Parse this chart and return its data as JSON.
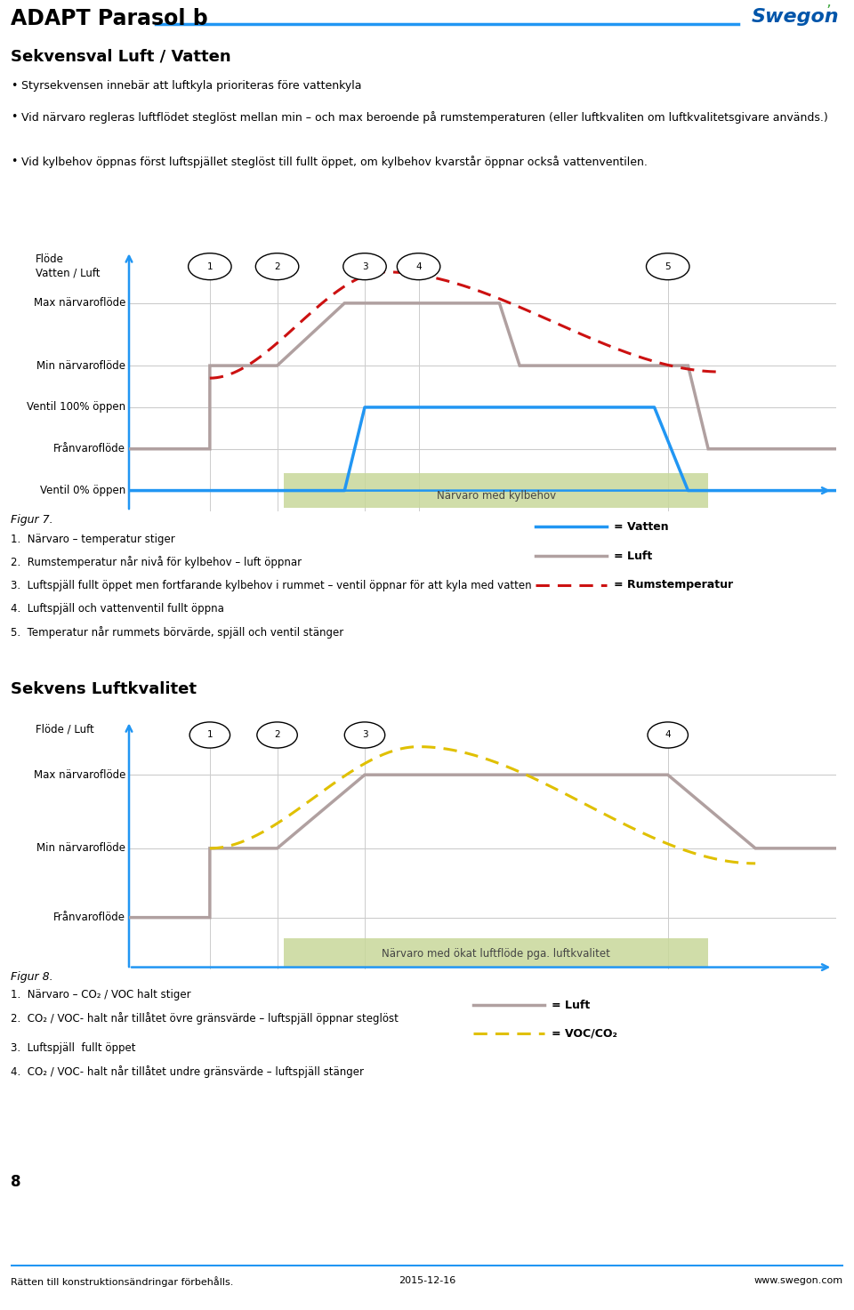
{
  "title": "ADAPT Parasol b",
  "section1_title": "Sekvensval Luft / Vatten",
  "section1_bullets": [
    "Styrsekvensen innebär att luftkyla prioriteras före vattenkyla",
    "Vid närvaro regleras luftflödet steglöst mellan min – och max beroende på rumstemperaturen (eller luftkvaliten om luftkvalitetsgivare används.)",
    "Vid kylbehov öppnas först luftspjället steglöst till fullt öppet, om kylbehov kvarstår öppnar också vattenventilen."
  ],
  "chart1_ylabels": [
    "Max närvaroflöde",
    "Min närvaroflöde",
    "Ventil 100% öppen",
    "Frånvaroflöde",
    "Ventil 0% öppen"
  ],
  "chart1_green_label": "Närvaro med kylbehov",
  "chart1_numbers": [
    "1",
    "2",
    "3",
    "4",
    "5"
  ],
  "fig7_title": "Figur 7.",
  "fig7_items": [
    "1.  Närvaro – temperatur stiger",
    "2.  Rumstemperatur når nivå för kylbehov – luft öppnar",
    "3.  Luftspjäll fullt öppet men fortfarande kylbehov i rummet – ventil öppnar för att kyla med vatten",
    "4.  Luftspjäll och vattenventil fullt öppna",
    "5.  Temperatur når rummets börvärde, spjäll och ventil stänger"
  ],
  "legend1_vatten": "= Vatten",
  "legend1_luft": "= Luft",
  "legend1_rumstemp": "= Rumstemperatur",
  "section2_title": "Sekvens Luftkvalitet",
  "chart2_ylabels": [
    "Max närvaroflöde",
    "Min närvaroflöde",
    "Frånvaroflöde"
  ],
  "chart2_green_label": "Närvaro med ökat luftflöde pga. luftkvalitet",
  "chart2_numbers": [
    "1",
    "2",
    "3",
    "4"
  ],
  "fig8_title": "Figur 8.",
  "fig8_items": [
    "1.  Närvaro – CO₂ / VOC halt stiger",
    "2.  CO₂ / VOC- halt når tillåtet övre gränsvärde – luftspjäll öppnar steglöst",
    "3.  Luftspjäll  fullt öppet",
    "4.  CO₂ / VOC- halt når tillåtet undre gränsvärde – luftspjäll stänger"
  ],
  "legend2_luft": "= Luft",
  "legend2_voc": "= VOC/CO₂",
  "footer_left": "Rätten till konstruktionsändringar förbehålls.",
  "footer_center": "2015-12-16",
  "footer_right": "www.swegon.com",
  "page_number": "8",
  "color_blue": "#2196F3",
  "color_gray": "#AAAAAA",
  "color_red_dashed": "#CC1111",
  "color_yellow_dashed": "#E0C000",
  "color_green_fill": "#C8D89A",
  "color_header_line": "#2196F3",
  "color_swegon_blue": "#0055AA",
  "color_swegon_green": "#44AA44"
}
